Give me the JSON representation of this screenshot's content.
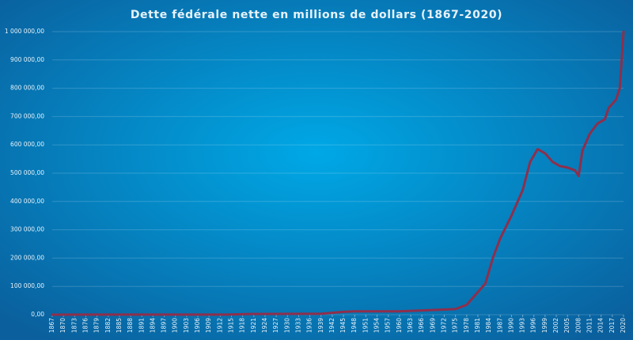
{
  "chart_data": {
    "type": "line",
    "title": "Dette fédérale nette en millions de dollars (1867-2020)",
    "x": [
      1867,
      1900,
      1914,
      1920,
      1939,
      1945,
      1948,
      1960,
      1970,
      1975,
      1978,
      1981,
      1983,
      1985,
      1987,
      1990,
      1993,
      1995,
      1997,
      1999,
      2001,
      2003,
      2005,
      2007,
      2008,
      2009,
      2011,
      2013,
      2015,
      2016,
      2018,
      2019,
      2020
    ],
    "series": [
      {
        "name": "Dette fédérale nette",
        "color": "#8e2f4c",
        "values": [
          100,
          300,
          500,
          2500,
          3200,
          10000,
          12000,
          12000,
          17000,
          20000,
          35000,
          80000,
          110000,
          200000,
          270000,
          350000,
          440000,
          540000,
          585000,
          570000,
          540000,
          525000,
          520000,
          510000,
          490000,
          580000,
          640000,
          675000,
          690000,
          730000,
          760000,
          800000,
          1000000
        ]
      }
    ],
    "xlim": [
      1867,
      2020
    ],
    "xticks": [
      1867,
      1870,
      1873,
      1876,
      1879,
      1882,
      1885,
      1888,
      1891,
      1894,
      1897,
      1900,
      1903,
      1906,
      1909,
      1912,
      1915,
      1918,
      1921,
      1924,
      1927,
      1930,
      1933,
      1936,
      1939,
      1942,
      1945,
      1948,
      1951,
      1954,
      1957,
      1960,
      1963,
      1966,
      1969,
      1972,
      1975,
      1978,
      1981,
      1984,
      1987,
      1990,
      1993,
      1996,
      1999,
      2002,
      2005,
      2008,
      2011,
      2014,
      2017,
      2020
    ],
    "ylim": [
      0,
      1000000
    ],
    "yticks": [
      {
        "value": 0,
        "label": "0,00"
      },
      {
        "value": 100000,
        "label": "100 000,00"
      },
      {
        "value": 200000,
        "label": "200 000,00"
      },
      {
        "value": 300000,
        "label": "300 000,00"
      },
      {
        "value": 400000,
        "label": "400 000,00"
      },
      {
        "value": 500000,
        "label": "500 000,00"
      },
      {
        "value": 600000,
        "label": "600 000,00"
      },
      {
        "value": 700000,
        "label": "700 000,00"
      },
      {
        "value": 800000,
        "label": "800 000,00"
      },
      {
        "value": 900000,
        "label": "900 000,00"
      },
      {
        "value": 1000000,
        "label": "1 000 000,00"
      }
    ],
    "grid": true
  }
}
